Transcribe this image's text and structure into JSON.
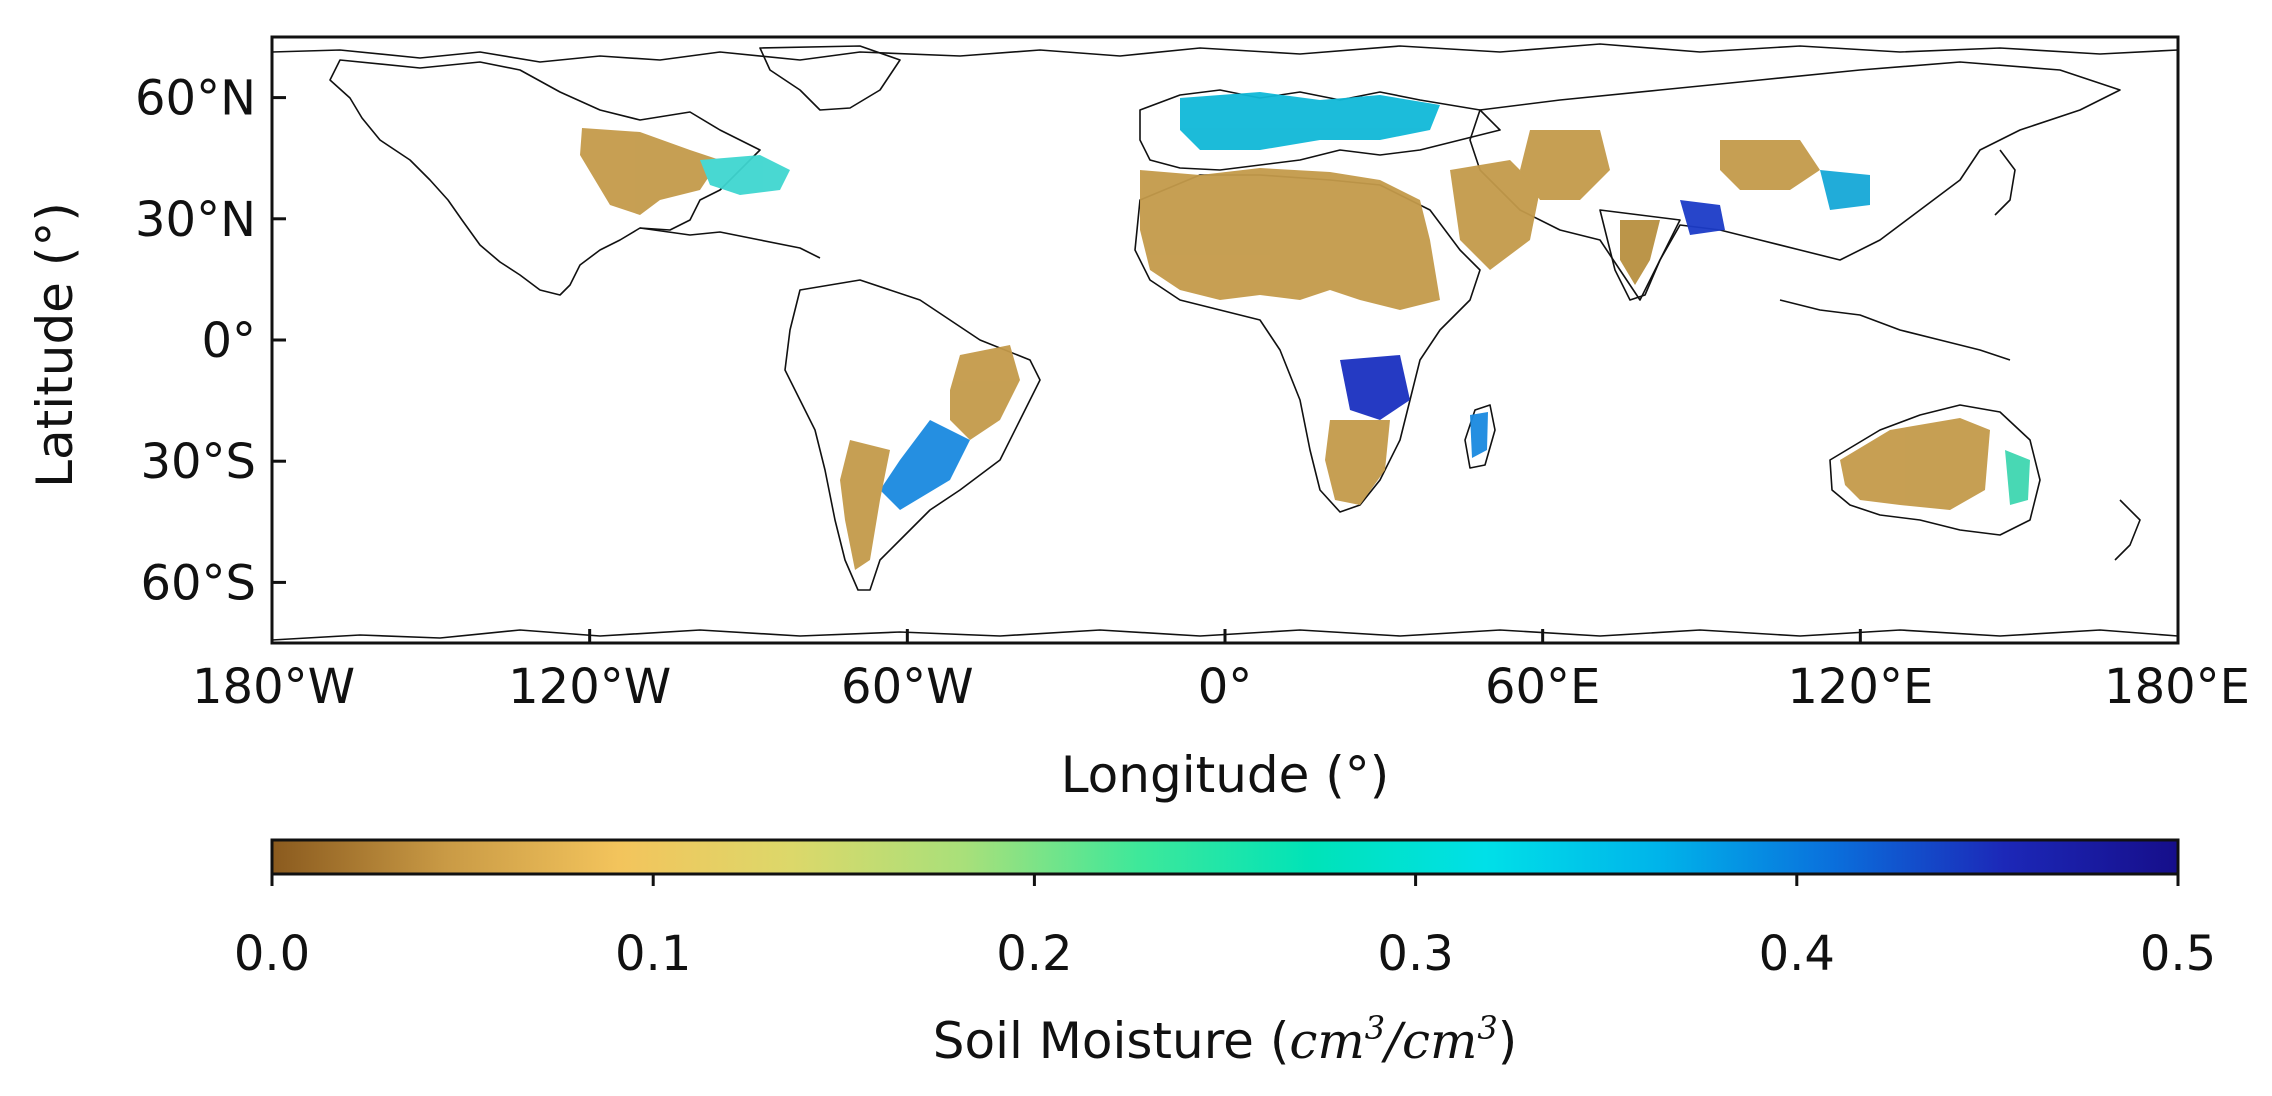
{
  "map": {
    "xlabel": "Longitude (°)",
    "ylabel": "Latitude (°)",
    "x_ticks": [
      {
        "value": -180,
        "label": "180°W"
      },
      {
        "value": -120,
        "label": "120°W"
      },
      {
        "value": -60,
        "label": "60°W"
      },
      {
        "value": 0,
        "label": "0°"
      },
      {
        "value": 60,
        "label": "60°E"
      },
      {
        "value": 120,
        "label": "120°E"
      },
      {
        "value": 180,
        "label": "180°E"
      }
    ],
    "y_ticks": [
      {
        "value": 60,
        "label": "60°N"
      },
      {
        "value": 30,
        "label": "30°N"
      },
      {
        "value": 0,
        "label": "0°"
      },
      {
        "value": -30,
        "label": "30°S"
      },
      {
        "value": -60,
        "label": "60°S"
      }
    ],
    "colorbar": {
      "label_prefix": "Soil Moisture (",
      "label_unit": "cm",
      "label_sup1": "3",
      "label_slash": "/",
      "label_unit2": "cm",
      "label_sup2": "3",
      "label_suffix": ")",
      "range": [
        0.0,
        0.5
      ],
      "ticks": [
        "0.0",
        "0.1",
        "0.2",
        "0.3",
        "0.4",
        "0.5"
      ],
      "colors": [
        "#8a5a1e",
        "#c99a45",
        "#f3c45c",
        "#dcd86a",
        "#a8e07a",
        "#3ee89a",
        "#00e3b8",
        "#00e0e8",
        "#00b4ea",
        "#0a70dc",
        "#1c28b8",
        "#160e8a"
      ]
    }
  }
}
